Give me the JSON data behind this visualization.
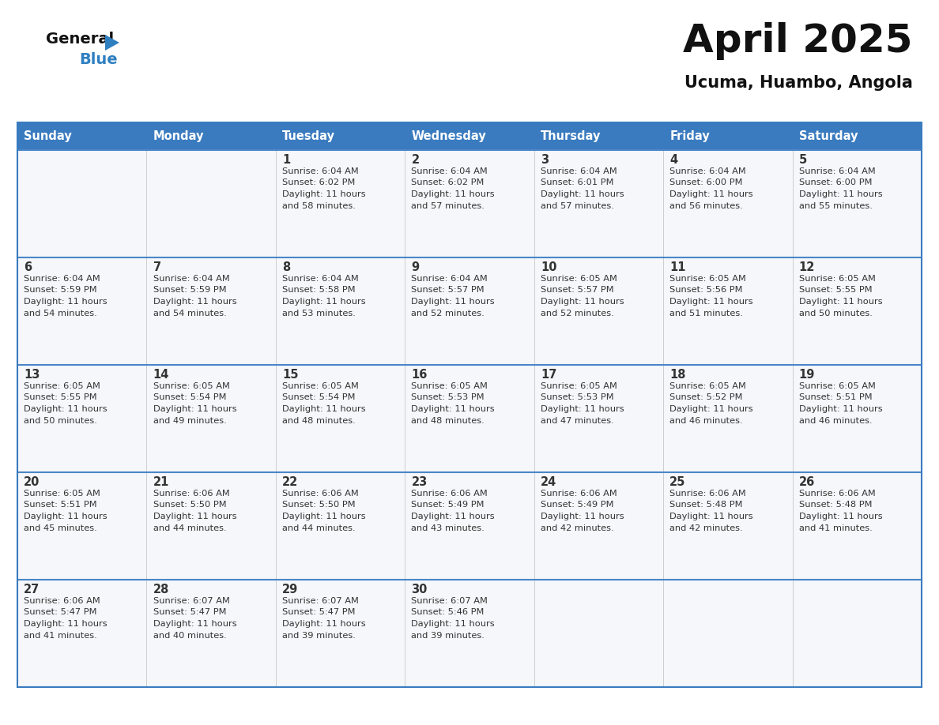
{
  "title": "April 2025",
  "subtitle": "Ucuma, Huambo, Angola",
  "header_bg": "#3a7bbf",
  "header_text_color": "#ffffff",
  "day_names": [
    "Sunday",
    "Monday",
    "Tuesday",
    "Wednesday",
    "Thursday",
    "Friday",
    "Saturday"
  ],
  "bg_color": "#ffffff",
  "cell_bg": "#f5f7fa",
  "cell_border_color": "#3a7bbf",
  "row_line_color": "#4a86c8",
  "text_color": "#333333",
  "title_color": "#111111",
  "subtitle_color": "#111111",
  "logo_black": "#111111",
  "logo_blue": "#2e7fc0",
  "days": [
    {
      "date": 1,
      "col": 2,
      "row": 0,
      "sunrise": "6:04 AM",
      "sunset": "6:02 PM",
      "daylight": "11 hours and 58 minutes."
    },
    {
      "date": 2,
      "col": 3,
      "row": 0,
      "sunrise": "6:04 AM",
      "sunset": "6:02 PM",
      "daylight": "11 hours and 57 minutes."
    },
    {
      "date": 3,
      "col": 4,
      "row": 0,
      "sunrise": "6:04 AM",
      "sunset": "6:01 PM",
      "daylight": "11 hours and 57 minutes."
    },
    {
      "date": 4,
      "col": 5,
      "row": 0,
      "sunrise": "6:04 AM",
      "sunset": "6:00 PM",
      "daylight": "11 hours and 56 minutes."
    },
    {
      "date": 5,
      "col": 6,
      "row": 0,
      "sunrise": "6:04 AM",
      "sunset": "6:00 PM",
      "daylight": "11 hours and 55 minutes."
    },
    {
      "date": 6,
      "col": 0,
      "row": 1,
      "sunrise": "6:04 AM",
      "sunset": "5:59 PM",
      "daylight": "11 hours and 54 minutes."
    },
    {
      "date": 7,
      "col": 1,
      "row": 1,
      "sunrise": "6:04 AM",
      "sunset": "5:59 PM",
      "daylight": "11 hours and 54 minutes."
    },
    {
      "date": 8,
      "col": 2,
      "row": 1,
      "sunrise": "6:04 AM",
      "sunset": "5:58 PM",
      "daylight": "11 hours and 53 minutes."
    },
    {
      "date": 9,
      "col": 3,
      "row": 1,
      "sunrise": "6:04 AM",
      "sunset": "5:57 PM",
      "daylight": "11 hours and 52 minutes."
    },
    {
      "date": 10,
      "col": 4,
      "row": 1,
      "sunrise": "6:05 AM",
      "sunset": "5:57 PM",
      "daylight": "11 hours and 52 minutes."
    },
    {
      "date": 11,
      "col": 5,
      "row": 1,
      "sunrise": "6:05 AM",
      "sunset": "5:56 PM",
      "daylight": "11 hours and 51 minutes."
    },
    {
      "date": 12,
      "col": 6,
      "row": 1,
      "sunrise": "6:05 AM",
      "sunset": "5:55 PM",
      "daylight": "11 hours and 50 minutes."
    },
    {
      "date": 13,
      "col": 0,
      "row": 2,
      "sunrise": "6:05 AM",
      "sunset": "5:55 PM",
      "daylight": "11 hours and 50 minutes."
    },
    {
      "date": 14,
      "col": 1,
      "row": 2,
      "sunrise": "6:05 AM",
      "sunset": "5:54 PM",
      "daylight": "11 hours and 49 minutes."
    },
    {
      "date": 15,
      "col": 2,
      "row": 2,
      "sunrise": "6:05 AM",
      "sunset": "5:54 PM",
      "daylight": "11 hours and 48 minutes."
    },
    {
      "date": 16,
      "col": 3,
      "row": 2,
      "sunrise": "6:05 AM",
      "sunset": "5:53 PM",
      "daylight": "11 hours and 48 minutes."
    },
    {
      "date": 17,
      "col": 4,
      "row": 2,
      "sunrise": "6:05 AM",
      "sunset": "5:53 PM",
      "daylight": "11 hours and 47 minutes."
    },
    {
      "date": 18,
      "col": 5,
      "row": 2,
      "sunrise": "6:05 AM",
      "sunset": "5:52 PM",
      "daylight": "11 hours and 46 minutes."
    },
    {
      "date": 19,
      "col": 6,
      "row": 2,
      "sunrise": "6:05 AM",
      "sunset": "5:51 PM",
      "daylight": "11 hours and 46 minutes."
    },
    {
      "date": 20,
      "col": 0,
      "row": 3,
      "sunrise": "6:05 AM",
      "sunset": "5:51 PM",
      "daylight": "11 hours and 45 minutes."
    },
    {
      "date": 21,
      "col": 1,
      "row": 3,
      "sunrise": "6:06 AM",
      "sunset": "5:50 PM",
      "daylight": "11 hours and 44 minutes."
    },
    {
      "date": 22,
      "col": 2,
      "row": 3,
      "sunrise": "6:06 AM",
      "sunset": "5:50 PM",
      "daylight": "11 hours and 44 minutes."
    },
    {
      "date": 23,
      "col": 3,
      "row": 3,
      "sunrise": "6:06 AM",
      "sunset": "5:49 PM",
      "daylight": "11 hours and 43 minutes."
    },
    {
      "date": 24,
      "col": 4,
      "row": 3,
      "sunrise": "6:06 AM",
      "sunset": "5:49 PM",
      "daylight": "11 hours and 42 minutes."
    },
    {
      "date": 25,
      "col": 5,
      "row": 3,
      "sunrise": "6:06 AM",
      "sunset": "5:48 PM",
      "daylight": "11 hours and 42 minutes."
    },
    {
      "date": 26,
      "col": 6,
      "row": 3,
      "sunrise": "6:06 AM",
      "sunset": "5:48 PM",
      "daylight": "11 hours and 41 minutes."
    },
    {
      "date": 27,
      "col": 0,
      "row": 4,
      "sunrise": "6:06 AM",
      "sunset": "5:47 PM",
      "daylight": "11 hours and 41 minutes."
    },
    {
      "date": 28,
      "col": 1,
      "row": 4,
      "sunrise": "6:07 AM",
      "sunset": "5:47 PM",
      "daylight": "11 hours and 40 minutes."
    },
    {
      "date": 29,
      "col": 2,
      "row": 4,
      "sunrise": "6:07 AM",
      "sunset": "5:47 PM",
      "daylight": "11 hours and 39 minutes."
    },
    {
      "date": 30,
      "col": 3,
      "row": 4,
      "sunrise": "6:07 AM",
      "sunset": "5:46 PM",
      "daylight": "11 hours and 39 minutes."
    }
  ],
  "num_rows": 5,
  "num_cols": 7
}
